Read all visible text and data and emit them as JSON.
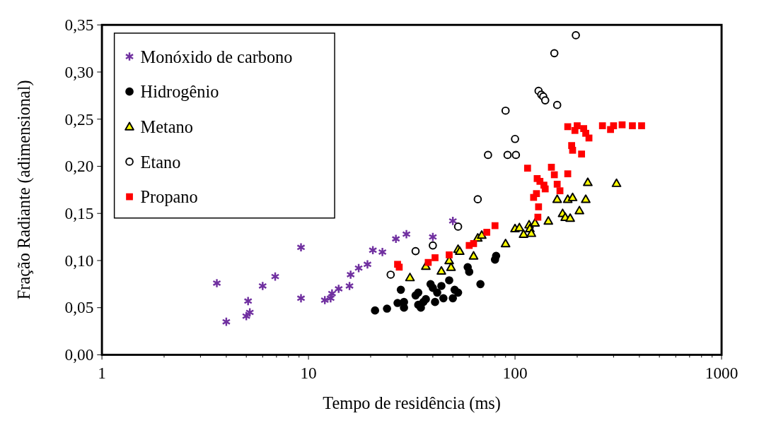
{
  "chart_data": {
    "type": "scatter",
    "xlabel": "Tempo de residência (ms)",
    "ylabel": "Fração Radiante (adimensional)",
    "log": "x",
    "xlim": [
      1,
      1000
    ],
    "xticks": [
      1,
      {
        "value": 2,
        "label": null
      },
      {
        "value": 3,
        "label": null
      },
      {
        "value": 4,
        "label": null
      },
      {
        "value": 5,
        "label": null
      },
      {
        "value": 6,
        "label": null
      },
      {
        "value": 7,
        "label": null
      },
      {
        "value": 8,
        "label": null
      },
      {
        "value": 9,
        "label": null
      },
      10,
      {
        "value": 20,
        "label": null
      },
      {
        "value": 30,
        "label": null
      },
      {
        "value": 40,
        "label": null
      },
      {
        "value": 50,
        "label": null
      },
      {
        "value": 60,
        "label": null
      },
      {
        "value": 70,
        "label": null
      },
      {
        "value": 80,
        "label": null
      },
      {
        "value": 90,
        "label": null
      },
      100,
      {
        "value": 200,
        "label": null
      },
      {
        "value": 300,
        "label": null
      },
      {
        "value": 400,
        "label": null
      },
      {
        "value": 500,
        "label": null
      },
      {
        "value": 600,
        "label": null
      },
      {
        "value": 700,
        "label": null
      },
      {
        "value": 800,
        "label": null
      },
      {
        "value": 900,
        "label": null
      },
      1000
    ],
    "ylim": [
      0,
      0.35
    ],
    "yticks": [
      {
        "value": 0,
        "label": "0,00"
      },
      {
        "value": 0.05,
        "label": "0,05"
      },
      {
        "value": 0.1,
        "label": "0,10"
      },
      {
        "value": 0.15,
        "label": "0,15"
      },
      {
        "value": 0.2,
        "label": "0,20"
      },
      {
        "value": 0.25,
        "label": "0,25"
      },
      {
        "value": 0.3,
        "label": "0,30"
      },
      {
        "value": 0.35,
        "label": "0,35"
      }
    ],
    "grid": false,
    "legend": "top left",
    "series": [
      {
        "name": "Monóxido de carbono",
        "color": "#7030a0",
        "marker": "cross",
        "x": [
          3.6,
          4.0,
          5.0,
          5.1,
          5.2,
          6.0,
          6.9,
          9.2,
          9.2,
          12.0,
          12.8,
          13.0,
          14.0,
          15.8,
          16.0,
          17.5,
          19.3,
          20.5,
          22.8,
          26.5,
          29.8,
          40,
          50
        ],
        "values": [
          0.076,
          0.035,
          0.041,
          0.057,
          0.045,
          0.073,
          0.083,
          0.114,
          0.06,
          0.058,
          0.06,
          0.065,
          0.07,
          0.073,
          0.085,
          0.092,
          0.096,
          0.111,
          0.109,
          0.123,
          0.128,
          0.125,
          0.142
        ]
      },
      {
        "name": "Hidrogênio",
        "color": "#000000",
        "marker": "circle",
        "x": [
          21,
          24,
          27,
          28,
          29,
          29,
          33,
          34,
          34,
          35,
          36,
          37,
          39,
          40,
          41,
          42,
          44,
          45,
          48,
          50,
          51,
          53,
          59,
          60,
          68,
          80,
          81
        ],
        "values": [
          0.047,
          0.049,
          0.055,
          0.069,
          0.056,
          0.05,
          0.063,
          0.066,
          0.053,
          0.05,
          0.056,
          0.059,
          0.075,
          0.071,
          0.056,
          0.066,
          0.073,
          0.06,
          0.079,
          0.06,
          0.069,
          0.066,
          0.093,
          0.088,
          0.075,
          0.101,
          0.105
        ]
      },
      {
        "name": "Metano",
        "color": "#ffff00",
        "marker": "triangle",
        "x": [
          31,
          37,
          44,
          48,
          49,
          53,
          54,
          63,
          66,
          69,
          90,
          100,
          105,
          110,
          117,
          118,
          120,
          125,
          145,
          160,
          170,
          175,
          180,
          185,
          190,
          205,
          220,
          225,
          310
        ],
        "values": [
          0.082,
          0.094,
          0.089,
          0.1,
          0.093,
          0.112,
          0.11,
          0.105,
          0.124,
          0.127,
          0.118,
          0.134,
          0.135,
          0.128,
          0.138,
          0.134,
          0.129,
          0.14,
          0.142,
          0.165,
          0.15,
          0.146,
          0.165,
          0.145,
          0.167,
          0.153,
          0.165,
          0.183,
          0.182
        ]
      },
      {
        "name": "Etano",
        "color": "#ffffff",
        "marker": "circle",
        "x": [
          25,
          33,
          40,
          53,
          66,
          74,
          90,
          92,
          100,
          101,
          130,
          134,
          137,
          140,
          155,
          160,
          197
        ],
        "values": [
          0.085,
          0.11,
          0.116,
          0.136,
          0.165,
          0.212,
          0.259,
          0.212,
          0.229,
          0.212,
          0.28,
          0.276,
          0.274,
          0.27,
          0.32,
          0.265,
          0.339
        ]
      },
      {
        "name": "Propano",
        "color": "#ff0000",
        "marker": "square",
        "x": [
          27,
          27.5,
          38,
          41,
          48,
          60,
          63,
          73,
          80,
          115,
          123,
          127,
          128,
          129,
          130,
          132,
          138,
          140,
          150,
          155,
          160,
          165,
          180,
          180,
          188,
          190,
          195,
          200,
          210,
          215,
          220,
          228,
          265,
          290,
          300,
          330,
          370,
          410
        ],
        "values": [
          0.096,
          0.093,
          0.098,
          0.103,
          0.106,
          0.116,
          0.118,
          0.13,
          0.137,
          0.198,
          0.167,
          0.171,
          0.187,
          0.146,
          0.157,
          0.184,
          0.18,
          0.176,
          0.199,
          0.191,
          0.181,
          0.174,
          0.192,
          0.242,
          0.222,
          0.217,
          0.238,
          0.243,
          0.213,
          0.24,
          0.235,
          0.23,
          0.243,
          0.239,
          0.243,
          0.244,
          0.243,
          0.243
        ]
      }
    ]
  }
}
